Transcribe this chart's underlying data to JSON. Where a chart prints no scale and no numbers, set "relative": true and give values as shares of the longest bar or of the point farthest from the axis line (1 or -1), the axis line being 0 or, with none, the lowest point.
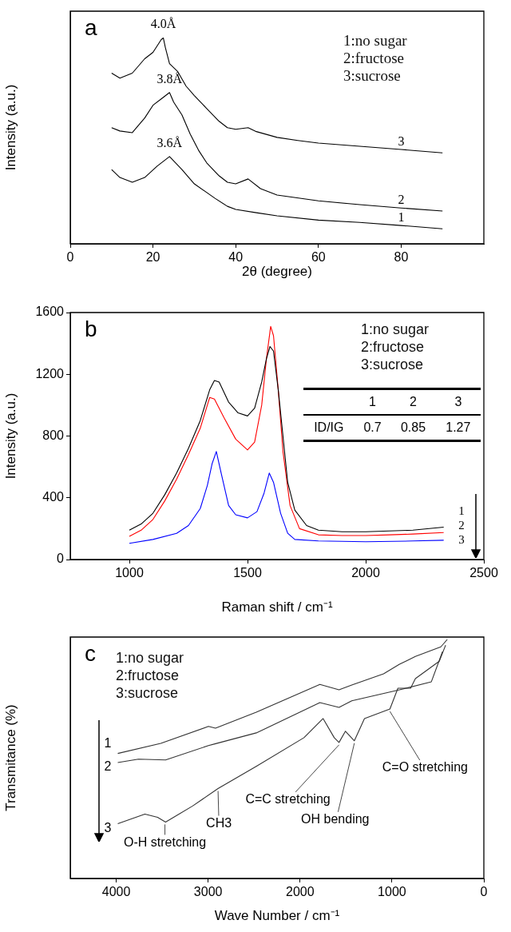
{
  "chart_data": [
    {
      "type": "line",
      "title": "a",
      "xlabel": "2θ (degree)",
      "ylabel": "Intensity (a.u.)",
      "relative": true,
      "xlim": [
        0,
        100
      ],
      "xticks": [
        0,
        20,
        40,
        60,
        80
      ],
      "annotations": [
        "1:no sugar",
        "2:fructose",
        "3:sucrose",
        {
          "text": "4.0Å",
          "x": 22.5,
          "y": 1.0
        },
        {
          "text": "3.8Å",
          "x": 24,
          "y": 0.735
        },
        {
          "text": "3.6Å",
          "x": 24,
          "y": 0.424
        }
      ],
      "series": [
        {
          "name": "1",
          "color": "#000000",
          "x": [
            10,
            12,
            15,
            18,
            21,
            24,
            27,
            30,
            35,
            38,
            40,
            45,
            50,
            60,
            70,
            80,
            90
          ],
          "values": [
            0.361,
            0.322,
            0.299,
            0.322,
            0.377,
            0.424,
            0.361,
            0.291,
            0.221,
            0.182,
            0.167,
            0.151,
            0.136,
            0.115,
            0.104,
            0.089,
            0.073
          ]
        },
        {
          "name": "2",
          "color": "#000000",
          "x": [
            10,
            12,
            15,
            18,
            20,
            22,
            24,
            25,
            27,
            29,
            31,
            33,
            36,
            38,
            40,
            43,
            46,
            50,
            60,
            70,
            80,
            90
          ],
          "values": [
            0.564,
            0.548,
            0.54,
            0.611,
            0.673,
            0.704,
            0.735,
            0.688,
            0.626,
            0.533,
            0.455,
            0.393,
            0.33,
            0.299,
            0.291,
            0.315,
            0.268,
            0.237,
            0.209,
            0.19,
            0.174,
            0.159
          ]
        },
        {
          "name": "3",
          "color": "#000000",
          "x": [
            10,
            12,
            15,
            18,
            20,
            22,
            22.5,
            23,
            24,
            26,
            28,
            30,
            33,
            36,
            38,
            40,
            43,
            45,
            50,
            55,
            60,
            70,
            80,
            90
          ],
          "values": [
            0.829,
            0.805,
            0.829,
            0.899,
            0.93,
            0.992,
            1.0,
            0.953,
            0.875,
            0.836,
            0.766,
            0.72,
            0.657,
            0.595,
            0.564,
            0.556,
            0.564,
            0.545,
            0.517,
            0.502,
            0.489,
            0.474,
            0.458,
            0.442
          ]
        }
      ]
    },
    {
      "type": "line",
      "title": "b",
      "xlabel": "Raman shift / cm⁻¹",
      "ylabel": "Intensity (a.u.)",
      "xlim": [
        750,
        2500
      ],
      "xticks": [
        1000,
        1500,
        2000,
        2500
      ],
      "ylim": [
        0,
        1600
      ],
      "yticks": [
        0,
        400,
        800,
        1200,
        1600
      ],
      "annotations": [
        "1:no sugar",
        "2:fructose",
        "3:sucrose",
        "1",
        "2",
        "3",
        "ID/IG",
        "0.7",
        "0.85",
        "1.27"
      ],
      "series": [
        {
          "name": "1",
          "color": "#000000",
          "x": [
            1000,
            1050,
            1100,
            1150,
            1200,
            1250,
            1300,
            1340,
            1360,
            1380,
            1420,
            1460,
            1500,
            1530,
            1560,
            1580,
            1595,
            1610,
            1630,
            1650,
            1670,
            1700,
            1750,
            1800,
            1900,
            2000,
            2100,
            2200,
            2330
          ],
          "values": [
            190,
            230,
            300,
            420,
            560,
            720,
            900,
            1100,
            1160,
            1150,
            1020,
            950,
            930,
            980,
            1150,
            1300,
            1380,
            1350,
            1100,
            800,
            500,
            320,
            220,
            190,
            180,
            180,
            185,
            190,
            210
          ]
        },
        {
          "name": "2",
          "color": "#ff0000",
          "x": [
            1000,
            1050,
            1100,
            1150,
            1200,
            1250,
            1300,
            1340,
            1360,
            1400,
            1450,
            1500,
            1530,
            1560,
            1580,
            1598,
            1610,
            1630,
            1650,
            1680,
            1720,
            1800,
            1900,
            2000,
            2100,
            2200,
            2330
          ],
          "values": [
            150,
            190,
            260,
            380,
            520,
            680,
            850,
            1050,
            1040,
            920,
            780,
            710,
            760,
            1000,
            1300,
            1510,
            1450,
            1100,
            700,
            350,
            200,
            160,
            155,
            155,
            160,
            165,
            175
          ]
        },
        {
          "name": "3",
          "color": "#0000ff",
          "x": [
            1000,
            1100,
            1200,
            1250,
            1300,
            1330,
            1350,
            1368,
            1390,
            1420,
            1450,
            1500,
            1540,
            1570,
            1592,
            1610,
            1640,
            1670,
            1700,
            1800,
            2000,
            2200,
            2330
          ],
          "values": [
            105,
            130,
            170,
            220,
            330,
            480,
            620,
            700,
            550,
            350,
            290,
            270,
            310,
            430,
            560,
            500,
            300,
            170,
            130,
            120,
            115,
            120,
            125
          ]
        }
      ]
    },
    {
      "type": "line",
      "title": "c",
      "xlabel": "Wave Number / cm⁻¹",
      "ylabel": "Transmitance (%)",
      "relative": true,
      "xlim": [
        4500,
        0
      ],
      "xticks": [
        4000,
        3000,
        2000,
        1000,
        0
      ],
      "annotations": [
        "1:no sugar",
        "2:fructose",
        "3:sucrose",
        {
          "text": "O-H stretching",
          "x": 3470,
          "y": 0.236
        },
        {
          "text": "CH3",
          "x": 2892,
          "y": 0.376
        },
        {
          "text": "C=C stretching",
          "x": 1576,
          "y": 0.569
        },
        {
          "text": "OH bending",
          "x": 1409,
          "y": 0.576
        },
        {
          "text": "C=O stretching",
          "x": 1022,
          "y": 0.709
        }
      ],
      "series": [
        {
          "name": "1",
          "color": "#333333",
          "x": [
            3983,
            3515,
            2996,
            2920,
            2476,
            1784,
            1576,
            1437,
            1091,
            918,
            745,
            468,
            398
          ],
          "values": [
            0.523,
            0.565,
            0.636,
            0.629,
            0.696,
            0.812,
            0.789,
            0.809,
            0.856,
            0.896,
            0.929,
            0.969,
            1.0
          ]
        },
        {
          "name": "2",
          "color": "#333333",
          "x": [
            3983,
            3758,
            3463,
            2996,
            2926,
            2476,
            1784,
            1576,
            1437,
            918,
            571,
            450
          ],
          "values": [
            0.485,
            0.499,
            0.496,
            0.556,
            0.563,
            0.609,
            0.736,
            0.716,
            0.743,
            0.789,
            0.823,
            0.949
          ]
        },
        {
          "name": "3",
          "color": "#333333",
          "x": [
            3983,
            3688,
            3550,
            3463,
            3169,
            2892,
            2476,
            1957,
            1749,
            1628,
            1576,
            1506,
            1409,
            1299,
            1022,
            935,
            797,
            745,
            485,
            416
          ],
          "values": [
            0.229,
            0.269,
            0.256,
            0.236,
            0.303,
            0.376,
            0.469,
            0.589,
            0.669,
            0.589,
            0.569,
            0.616,
            0.576,
            0.669,
            0.709,
            0.796,
            0.796,
            0.836,
            0.909,
            0.976
          ]
        }
      ]
    }
  ]
}
